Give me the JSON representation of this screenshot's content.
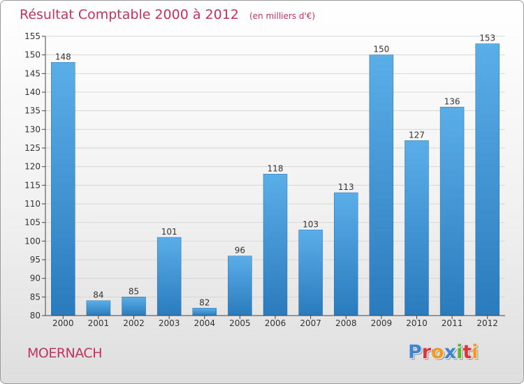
{
  "chart_data": {
    "type": "bar",
    "title": "Résultat Comptable 2000 à 2012",
    "subtitle": "(en milliers d'€)",
    "categories": [
      "2000",
      "2001",
      "2002",
      "2003",
      "2004",
      "2005",
      "2006",
      "2007",
      "2008",
      "2009",
      "2010",
      "2011",
      "2012"
    ],
    "values": [
      148,
      84,
      85,
      101,
      82,
      96,
      118,
      103,
      113,
      150,
      127,
      136,
      153
    ],
    "ylim": [
      80,
      155
    ],
    "yticks": [
      80,
      85,
      90,
      95,
      100,
      105,
      110,
      115,
      120,
      125,
      130,
      135,
      140,
      145,
      150,
      155
    ],
    "grid": true,
    "bar_color_top": "#5aaee8",
    "bar_color_bottom": "#2a7bbd"
  },
  "footer": {
    "commune": "MOERNACH",
    "logo_letters": [
      {
        "char": "P",
        "color": "#3a86d4"
      },
      {
        "char": "r",
        "color": "#e0343a"
      },
      {
        "char": "o",
        "color": "#f29a1f"
      },
      {
        "char": "x",
        "color": "#3a86d4"
      },
      {
        "char": "i",
        "color": "#5bb531"
      },
      {
        "char": "t",
        "color": "#e0343a"
      },
      {
        "char": "i",
        "color": "#f29a1f"
      }
    ]
  },
  "colors": {
    "title": "#c0335f",
    "axis": "#444444",
    "grid": "#d6d6d6"
  }
}
